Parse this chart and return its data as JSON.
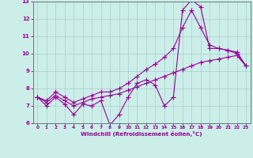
{
  "xlabel": "Windchill (Refroidissement éolien,°C)",
  "bg_color": "#cceee8",
  "grid_color": "#aacccc",
  "line_color": "#990099",
  "xlim": [
    -0.5,
    23.5
  ],
  "ylim": [
    6,
    13
  ],
  "yticks": [
    6,
    7,
    8,
    9,
    10,
    11,
    12,
    13
  ],
  "xticks": [
    0,
    1,
    2,
    3,
    4,
    5,
    6,
    7,
    8,
    9,
    10,
    11,
    12,
    13,
    14,
    15,
    16,
    17,
    18,
    19,
    20,
    21,
    22,
    23
  ],
  "line1_x": [
    0,
    1,
    2,
    3,
    4,
    5,
    6,
    7,
    8,
    9,
    10,
    11,
    12,
    13,
    14,
    15,
    16,
    17,
    18,
    19,
    20,
    21,
    22,
    23
  ],
  "line1_y": [
    7.5,
    7.0,
    7.5,
    7.1,
    6.5,
    7.1,
    7.0,
    7.3,
    5.9,
    6.5,
    7.5,
    8.3,
    8.5,
    8.2,
    7.0,
    7.5,
    12.5,
    13.1,
    12.7,
    10.3,
    10.3,
    10.2,
    10.0,
    9.3
  ],
  "line2_x": [
    0,
    1,
    2,
    3,
    4,
    5,
    6,
    7,
    8,
    9,
    10,
    11,
    12,
    13,
    14,
    15,
    16,
    17,
    18,
    19,
    20,
    21,
    22,
    23
  ],
  "line2_y": [
    7.5,
    7.2,
    7.6,
    7.3,
    7.0,
    7.2,
    7.4,
    7.5,
    7.6,
    7.7,
    7.9,
    8.1,
    8.3,
    8.5,
    8.7,
    8.9,
    9.1,
    9.3,
    9.5,
    9.6,
    9.7,
    9.8,
    9.9,
    9.3
  ],
  "line3_x": [
    0,
    1,
    2,
    3,
    4,
    5,
    6,
    7,
    8,
    9,
    10,
    11,
    12,
    13,
    14,
    15,
    16,
    17,
    18,
    19,
    20,
    21,
    22,
    23
  ],
  "line3_y": [
    7.5,
    7.3,
    7.8,
    7.5,
    7.2,
    7.4,
    7.6,
    7.8,
    7.8,
    8.0,
    8.3,
    8.7,
    9.1,
    9.4,
    9.8,
    10.3,
    11.5,
    12.5,
    11.5,
    10.5,
    10.3,
    10.2,
    10.1,
    9.3
  ]
}
